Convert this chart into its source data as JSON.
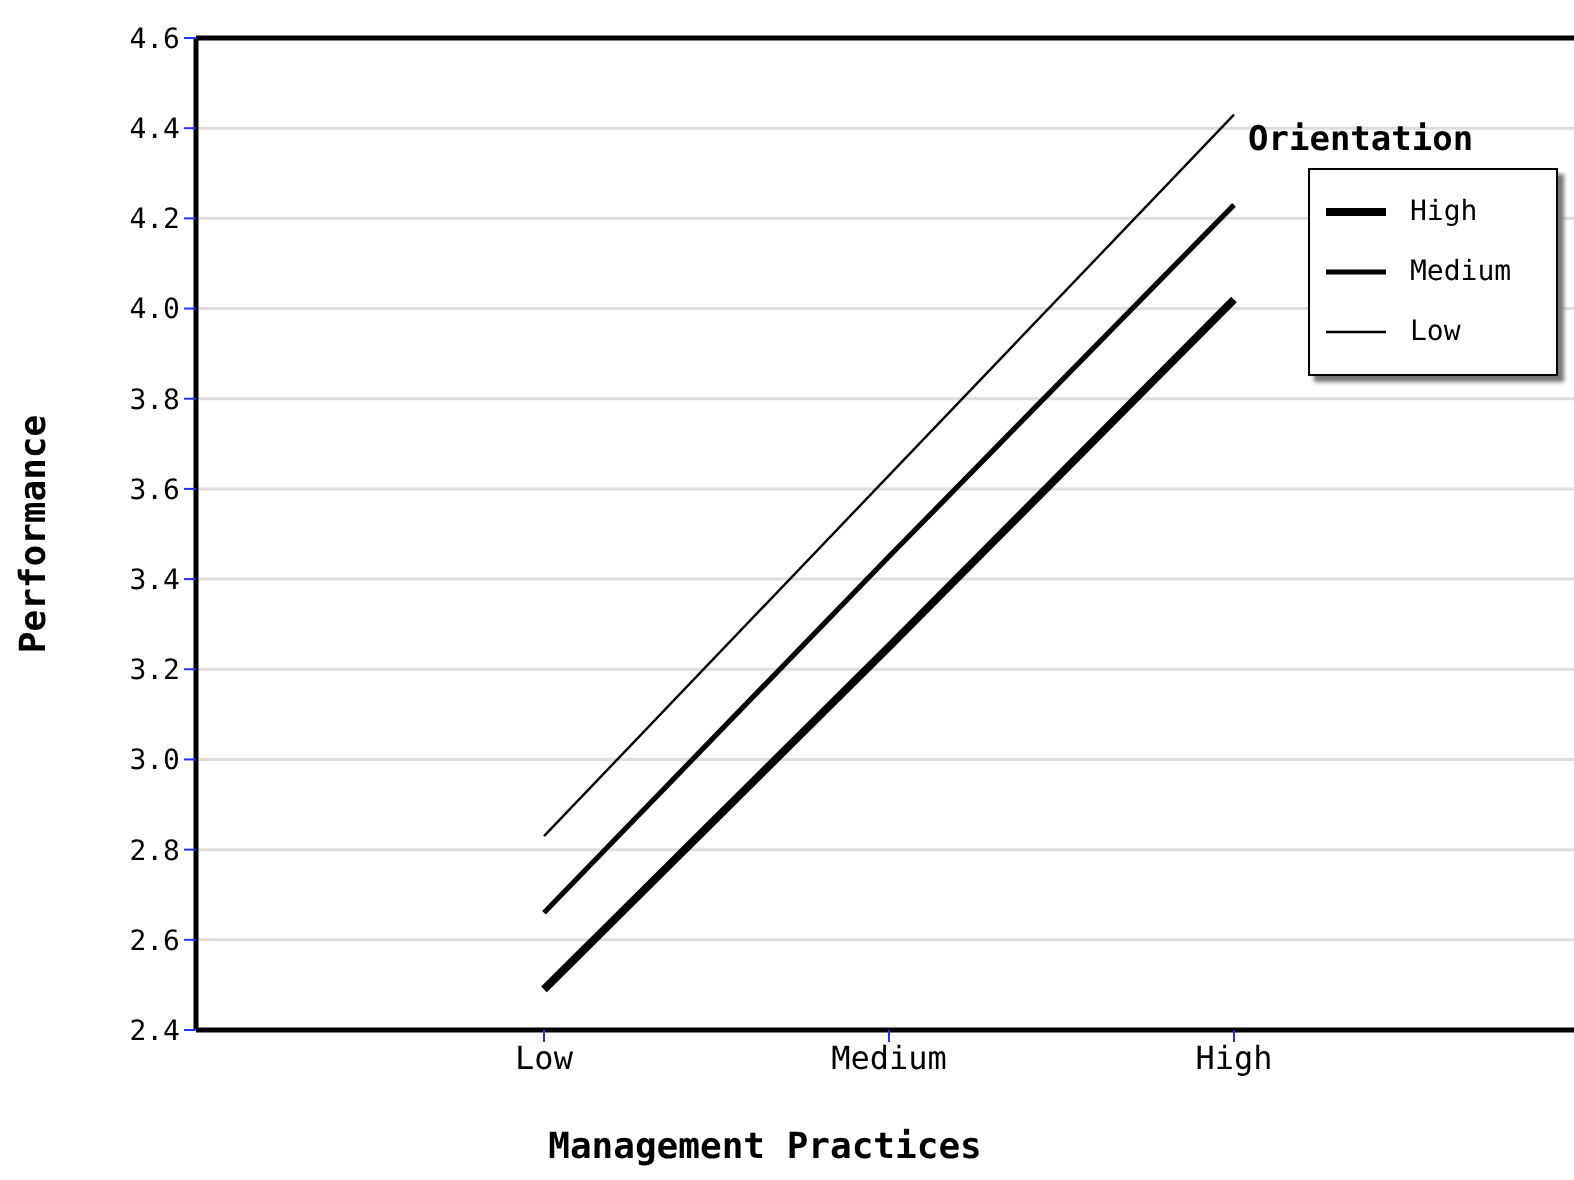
{
  "chart_data": {
    "type": "line",
    "xlabel": "Management Practices",
    "ylabel": "Performance",
    "legend_title": "Orientation",
    "categories": [
      "Low",
      "Medium",
      "High"
    ],
    "series": [
      {
        "name": "High",
        "color": "#000000",
        "values": [
          2.49,
          3.25,
          4.02
        ]
      },
      {
        "name": "Medium",
        "color": "#000000",
        "values": [
          2.66,
          3.45,
          4.23
        ]
      },
      {
        "name": "Low",
        "color": "#000000",
        "values": [
          2.83,
          3.63,
          4.43
        ]
      }
    ],
    "ylim": [
      2.4,
      4.6
    ],
    "yticks": [
      2.4,
      2.6,
      2.8,
      {
        "value": 3,
        "label": "3.0"
      },
      3.2,
      3.4,
      3.6,
      3.8,
      {
        "value": 4,
        "label": "4.0"
      },
      4.2,
      4.4,
      4.6
    ],
    "grid": "y",
    "legend": "top right",
    "marker": "none",
    "line_style": "solid"
  }
}
